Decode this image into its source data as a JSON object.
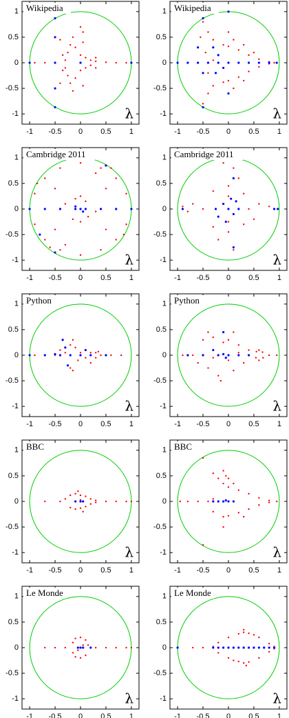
{
  "chart_data": [
    {
      "type": "scatter",
      "title": "Wikipedia",
      "annotation": "λ",
      "xlim": [
        -1.15,
        1.15
      ],
      "ylim": [
        -1.2,
        1.2
      ],
      "xticks": [
        -1,
        -0.5,
        0,
        0.5,
        1
      ],
      "yticks": [
        -1,
        -0.5,
        0,
        0.5,
        1
      ],
      "reference_circle": {
        "radius": 1,
        "color": "#00cc00"
      },
      "series": [
        {
          "color": "#ff0000",
          "x": [
            -0.9,
            -0.7,
            -0.5,
            -0.3,
            -0.25,
            -0.2,
            -0.15,
            -0.3,
            -0.25,
            -0.2,
            -0.15,
            0,
            0.1,
            0.2,
            0.3,
            0.5,
            0.7,
            0.9,
            0,
            0.1,
            0.2,
            -0.1,
            -0.1,
            0.05,
            0.05,
            -0.4,
            -0.4,
            0.3,
            0.3,
            0,
            0.05,
            -0.35,
            -0.35
          ],
          "y": [
            0,
            0,
            0,
            0.05,
            0.2,
            0.35,
            0.5,
            -0.1,
            -0.25,
            -0.4,
            -0.55,
            0.15,
            0.1,
            0.05,
            0.03,
            0.01,
            0,
            0,
            -0.15,
            -0.1,
            -0.05,
            0.3,
            -0.3,
            0.4,
            -0.45,
            0.45,
            -0.4,
            0.1,
            -0.1,
            0.7,
            0.6,
            0.15,
            -0.15
          ]
        },
        {
          "color": "#0000ff",
          "x": [
            -0.5,
            -0.5,
            -0.5,
            -0.5,
            -1,
            1,
            -0.5,
            0
          ],
          "y": [
            0.87,
            -0.87,
            0.5,
            -0.5,
            0,
            0,
            0,
            0
          ]
        }
      ]
    },
    {
      "type": "scatter",
      "title": "Wikipedia",
      "annotation": "λ",
      "xlim": [
        -1.15,
        1.15
      ],
      "ylim": [
        -1.2,
        1.2
      ],
      "xticks": [
        -1,
        -0.5,
        0,
        0.5,
        1
      ],
      "yticks": [
        -1,
        -0.5,
        0,
        0.5,
        1
      ],
      "reference_circle": {
        "radius": 1,
        "color": "#00cc00"
      },
      "series": [
        {
          "color": "#ff0000",
          "x": [
            -0.5,
            -0.4,
            -0.3,
            -0.1,
            0,
            0.2,
            0.4,
            0.6,
            0.8,
            -0.5,
            -0.4,
            -0.3,
            -0.1,
            0,
            0.2,
            0.4,
            0.6,
            0.8,
            -0.45,
            -0.4,
            -0.55,
            0,
            0.1,
            0.3,
            0.5,
            0.1,
            0.3,
            -0.3,
            0.9
          ],
          "y": [
            0.8,
            0.6,
            0.45,
            0.35,
            0.32,
            0.25,
            0.15,
            0.07,
            0.02,
            -0.8,
            -0.6,
            -0.45,
            -0.38,
            -0.35,
            -0.28,
            -0.17,
            -0.08,
            -0.02,
            0.2,
            -0.2,
            0.5,
            0.6,
            0.45,
            0.35,
            0.2,
            -0.5,
            -0.35,
            0.05,
            0
          ]
        },
        {
          "color": "#0000ff",
          "x": [
            -1,
            -0.8,
            -0.6,
            -0.4,
            -0.2,
            0,
            0.2,
            0.4,
            0.6,
            0.8,
            0.95,
            -0.5,
            -0.5,
            0,
            -0.3,
            -0.2,
            -0.25,
            -0.1,
            0,
            -0.5,
            -0.6
          ],
          "y": [
            0,
            0,
            0,
            0,
            0,
            0,
            0,
            0,
            0,
            0,
            0,
            0.87,
            -0.87,
            1,
            0.3,
            0.15,
            -0.2,
            -0.1,
            -0.6,
            -0.2,
            0.3
          ]
        }
      ]
    },
    {
      "type": "scatter",
      "title": "Cambridge 2011",
      "annotation": "λ",
      "xlim": [
        -1.15,
        1.15
      ],
      "ylim": [
        -1.2,
        1.2
      ],
      "xticks": [
        -1,
        -0.5,
        0,
        0.5,
        1
      ],
      "yticks": [
        -1,
        -0.5,
        0,
        0.5,
        1
      ],
      "reference_circle": {
        "radius": 1,
        "color": "#00cc00"
      },
      "series": [
        {
          "color": "#ff0000",
          "x": [
            0.9,
            0.7,
            0.4,
            0,
            -0.4,
            -0.7,
            -0.9,
            -0.9,
            -0.7,
            -0.4,
            0,
            0.4,
            0.7,
            0.9,
            0.5,
            -0.5,
            -0.5,
            0.5,
            0.3,
            -0.3,
            -0.1,
            0.1,
            -0.15,
            0.15,
            0,
            0,
            -0.3,
            0.3,
            0.6,
            -0.6,
            -0.85,
            0.85
          ],
          "y": [
            0.3,
            0.6,
            0.8,
            0.9,
            0.8,
            0.6,
            0.3,
            -0.3,
            -0.6,
            -0.8,
            -0.9,
            -0.8,
            -0.6,
            -0.3,
            0.4,
            0.4,
            -0.4,
            -0.4,
            0.7,
            -0.7,
            0.2,
            0.15,
            -0.2,
            -0.15,
            0.25,
            -0.25,
            0.1,
            -0.05,
            0.8,
            -0.75,
            0.5,
            -0.5
          ]
        },
        {
          "color": "#0000ff",
          "x": [
            -1,
            -0.7,
            -0.4,
            -0.1,
            0,
            0.1,
            0.4,
            0.7,
            1,
            -0.5,
            -0.8,
            0.5,
            -0.1,
            0.05
          ],
          "y": [
            0,
            0,
            0,
            0,
            0,
            0,
            0,
            0,
            0,
            -0.85,
            -0.5,
            0.85,
            0.05,
            -0.05
          ]
        }
      ]
    },
    {
      "type": "scatter",
      "title": "Cambridge 2011",
      "annotation": "λ",
      "xlim": [
        -1.15,
        1.15
      ],
      "ylim": [
        -1.2,
        1.2
      ],
      "xticks": [
        -1,
        -0.5,
        0,
        0.5,
        1
      ],
      "yticks": [
        -1,
        -0.5,
        0,
        0.5,
        1
      ],
      "reference_circle": {
        "radius": 1,
        "color": "#00cc00"
      },
      "series": [
        {
          "color": "#ff0000",
          "x": [
            0.4,
            0.3,
            0,
            -0.3,
            -0.5,
            -0.3,
            0,
            0.3,
            0.2,
            0,
            -0.25,
            0,
            0.1,
            -0.1,
            0.1,
            0.6,
            0.8,
            -0.7,
            -0.8,
            -0.9,
            0.5,
            0.2,
            -0.2
          ],
          "y": [
            0,
            0.3,
            0.45,
            0.35,
            0,
            -0.35,
            -0.45,
            -0.3,
            0,
            0.25,
            0,
            -0.25,
            0.8,
            0.9,
            -0.8,
            0.1,
            0.05,
            0.1,
            -0.05,
            0.05,
            -0.2,
            0.6,
            -0.6
          ]
        },
        {
          "color": "#0000ff",
          "x": [
            0,
            -0.1,
            0.1,
            0.15,
            -0.2,
            0.05,
            -0.05,
            0.2,
            -0.25,
            0.97,
            0.9,
            0.1,
            -0.9,
            0.1
          ],
          "y": [
            0,
            0.1,
            -0.1,
            0.15,
            -0.15,
            0.2,
            -0.25,
            0,
            0,
            0,
            0,
            0.6,
            0,
            -0.75
          ]
        }
      ]
    },
    {
      "type": "scatter",
      "title": "Python",
      "annotation": "λ",
      "xlim": [
        -1.15,
        1.15
      ],
      "ylim": [
        -1.2,
        1.2
      ],
      "xticks": [
        -1,
        -0.5,
        0,
        0.5,
        1
      ],
      "yticks": [
        -1,
        -0.5,
        0,
        0.5,
        1
      ],
      "reference_circle": {
        "radius": 1,
        "color": "#00cc00"
      },
      "series": [
        {
          "color": "#ff0000",
          "x": [
            -0.9,
            -0.5,
            -0.3,
            -0.2,
            -0.2,
            -0.1,
            -0.05,
            0,
            0.1,
            0.2,
            0.3,
            0.4,
            0.3,
            0.35,
            -0.15,
            -0.15,
            0.6,
            0.8,
            -0.4,
            0.2
          ],
          "y": [
            0,
            0,
            0.05,
            0.2,
            -0.25,
            0.15,
            -0.1,
            0.05,
            -0.05,
            0.05,
            0.05,
            0,
            -0.05,
            0.07,
            0.3,
            -0.3,
            0,
            0,
            0.1,
            -0.15
          ]
        },
        {
          "color": "#0000ff",
          "x": [
            -1,
            -0.7,
            -0.5,
            -0.4,
            -0.2,
            0,
            0.2,
            0.5,
            -0.3,
            -0.35,
            -0.25,
            0.1
          ],
          "y": [
            0,
            0,
            0.02,
            0,
            0,
            0,
            0,
            0,
            0.15,
            0.3,
            -0.2,
            0.1
          ]
        }
      ]
    },
    {
      "type": "scatter",
      "title": "Python",
      "annotation": "λ",
      "xlim": [
        -1.15,
        1.15
      ],
      "ylim": [
        -1.2,
        1.2
      ],
      "xticks": [
        -1,
        -0.5,
        0,
        0.5,
        1
      ],
      "yticks": [
        -1,
        -0.5,
        0,
        0.5,
        1
      ],
      "reference_circle": {
        "radius": 1,
        "color": "#00cc00"
      },
      "series": [
        {
          "color": "#ff0000",
          "x": [
            -0.5,
            -0.4,
            -0.3,
            -0.2,
            -0.1,
            0,
            0.1,
            0.2,
            0.3,
            0.4,
            -0.3,
            0,
            0.2,
            0.55,
            0.6,
            0.67,
            0.68,
            0.6,
            0.54,
            0.8,
            0.95,
            -0.7,
            -0.9,
            -0.4,
            0.1,
            -0.6,
            -0.15
          ],
          "y": [
            0.3,
            -0.25,
            0.35,
            -0.4,
            0.25,
            0.3,
            -0.3,
            0.2,
            -0.15,
            0.1,
            -0.05,
            -0.1,
            0.05,
            0.07,
            0.1,
            0.06,
            -0.05,
            -0.1,
            -0.05,
            0,
            0,
            0,
            0,
            0.45,
            0.45,
            -0.15,
            -0.5
          ]
        },
        {
          "color": "#0000ff",
          "x": [
            -0.8,
            -0.5,
            -0.2,
            -0.1,
            0,
            0.2,
            0.4,
            -0.1,
            -0.3,
            -0.05
          ],
          "y": [
            0,
            0,
            0,
            0.02,
            0,
            0,
            0,
            0.45,
            0.1,
            -0.05
          ]
        }
      ]
    },
    {
      "type": "scatter",
      "title": "BBC",
      "annotation": "λ",
      "xlim": [
        -1.15,
        1.15
      ],
      "ylim": [
        -1.2,
        1.2
      ],
      "xticks": [
        -1,
        -0.5,
        0,
        0.5,
        1
      ],
      "yticks": [
        -1,
        -0.5,
        0,
        0.5,
        1
      ],
      "reference_circle": {
        "radius": 1,
        "color": "#00cc00"
      },
      "series": [
        {
          "color": "#ff0000",
          "x": [
            -0.7,
            -0.4,
            -0.3,
            -0.2,
            -0.1,
            0,
            0.1,
            0.2,
            0.3,
            -0.2,
            -0.1,
            0,
            0.1,
            0.2,
            0.3,
            0,
            -0.1,
            0.5,
            0.7,
            0.9,
            1,
            -0.05,
            0.05
          ],
          "y": [
            0,
            0,
            0.05,
            0.12,
            0.15,
            0.12,
            0.1,
            0.05,
            0.02,
            -0.12,
            -0.15,
            -0.13,
            -0.1,
            -0.05,
            -0.02,
            0.03,
            0,
            0,
            0,
            0,
            0,
            0.2,
            -0.2
          ]
        },
        {
          "color": "#0000ff",
          "x": [
            -0.1,
            0,
            0.05
          ],
          "y": [
            0,
            0,
            0
          ]
        }
      ]
    },
    {
      "type": "scatter",
      "title": "BBC",
      "annotation": "λ",
      "xlim": [
        -1.15,
        1.15
      ],
      "ylim": [
        -1.2,
        1.2
      ],
      "xticks": [
        -1,
        -0.5,
        0,
        0.5,
        1
      ],
      "yticks": [
        -1,
        -0.5,
        0,
        0.5,
        1
      ],
      "reference_circle": {
        "radius": 1,
        "color": "#00cc00"
      },
      "series": [
        {
          "color": "#ff0000",
          "x": [
            -0.5,
            -0.3,
            -0.2,
            -0.1,
            0,
            0.2,
            0.4,
            0.6,
            0.8,
            -0.5,
            -0.3,
            -0.1,
            0,
            0.2,
            0.4,
            0.6,
            0.8,
            -0.1,
            -0.05,
            0,
            -0.3,
            -0.6,
            -0.8,
            -0.95,
            0.95,
            0.1,
            -0.1,
            -0.4,
            0.3
          ],
          "y": [
            0.85,
            0.55,
            0.45,
            0.35,
            0.28,
            0.22,
            0.15,
            0.07,
            0.02,
            -0.85,
            -0.2,
            -0.3,
            -0.28,
            -0.22,
            -0.15,
            -0.07,
            -0.02,
            0.6,
            0.5,
            0.45,
            0.05,
            0,
            0,
            0,
            0,
            0.35,
            -0.5,
            0,
            -0.3
          ]
        },
        {
          "color": "#0000ff",
          "x": [
            -0.3,
            -0.2,
            -0.1,
            0,
            0.1,
            -0.05
          ],
          "y": [
            0,
            0,
            0,
            0,
            0,
            0.02
          ]
        }
      ]
    },
    {
      "type": "scatter",
      "title": "Le Monde",
      "annotation": "λ",
      "xlim": [
        -1.15,
        1.15
      ],
      "ylim": [
        -1.2,
        1.2
      ],
      "xticks": [
        -1,
        -0.5,
        0,
        0.5,
        1
      ],
      "yticks": [
        -1,
        -0.5,
        0,
        0.5,
        1
      ],
      "reference_circle": {
        "radius": 1,
        "color": "#00cc00"
      },
      "series": [
        {
          "color": "#ff0000",
          "x": [
            -0.7,
            -0.5,
            -0.3,
            -0.15,
            -0.1,
            0,
            0.1,
            0.15,
            -0.15,
            -0.1,
            0,
            0.1,
            0.05,
            -0.05,
            0.3,
            0.5,
            0.7,
            0.9,
            1
          ],
          "y": [
            0,
            0,
            0,
            0.1,
            0.18,
            0.2,
            0.15,
            0.05,
            -0.1,
            -0.18,
            -0.2,
            -0.15,
            0.05,
            -0.05,
            0,
            0,
            0,
            0,
            0
          ]
        },
        {
          "color": "#0000ff",
          "x": [
            -0.05,
            0,
            0.05,
            0.2
          ],
          "y": [
            0,
            0,
            0,
            0
          ]
        }
      ]
    },
    {
      "type": "scatter",
      "title": "Le Monde",
      "annotation": "λ",
      "xlim": [
        -1.15,
        1.15
      ],
      "ylim": [
        -1.2,
        1.2
      ],
      "xticks": [
        -1,
        -0.5,
        0,
        0.5,
        1
      ],
      "yticks": [
        -1,
        -0.5,
        0,
        0.5,
        1
      ],
      "reference_circle": {
        "radius": 1,
        "color": "#00cc00"
      },
      "series": [
        {
          "color": "#ff0000",
          "x": [
            -0.7,
            -0.5,
            -0.3,
            -0.2,
            0,
            0.2,
            0.3,
            0.4,
            0.6,
            0.8,
            0.9,
            -0.2,
            0,
            0.2,
            0.3,
            0.4,
            0.6,
            0.8,
            0.9,
            0.3,
            0.35,
            0.5,
            0.1
          ],
          "y": [
            0,
            0,
            0.02,
            0.1,
            0.2,
            0.27,
            0.3,
            0.28,
            0.2,
            0.08,
            0.02,
            -0.1,
            -0.2,
            -0.27,
            -0.3,
            -0.28,
            -0.2,
            -0.08,
            -0.02,
            0.35,
            -0.35,
            0.25,
            -0.25
          ]
        },
        {
          "color": "#0000ff",
          "x": [
            -1,
            -0.3,
            -0.2,
            -0.1,
            0,
            0.1,
            0.2,
            0.3,
            0.4,
            0.5,
            0.6,
            0.7,
            0.8,
            0.9
          ],
          "y": [
            0,
            0,
            0,
            0,
            0,
            0,
            0,
            0,
            0,
            0,
            0,
            0,
            0,
            0
          ]
        }
      ]
    }
  ]
}
